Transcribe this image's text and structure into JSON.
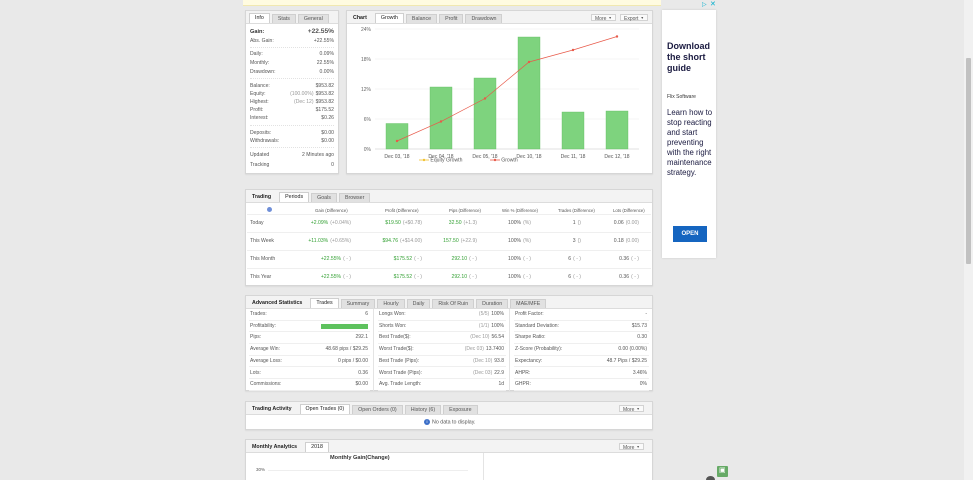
{
  "info": {
    "tabs": [
      "Info",
      "Stats",
      "General"
    ],
    "gain_label": "Gain:",
    "gain_value": "+22.55%",
    "abs_gain_label": "Abs. Gain:",
    "abs_gain_value": "+22.55%",
    "daily_label": "Daily:",
    "daily_value": "0.09%",
    "monthly_label": "Monthly:",
    "monthly_value": "22.55%",
    "drawdown_label": "Drawdown:",
    "drawdown_value": "0.00%",
    "balance_label": "Balance:",
    "balance_value": "$953.82",
    "equity_label": "Equity:",
    "equity_note": "(100.00%)",
    "equity_value": "$953.82",
    "highest_label": "Highest:",
    "highest_note": "(Dec 12)",
    "highest_value": "$953.82",
    "profit_label": "Profit:",
    "profit_value": "$175.52",
    "interest_label": "Interest:",
    "interest_value": "$0.26",
    "deposits_label": "Deposits:",
    "deposits_value": "$0.00",
    "withdrawals_label": "Withdrawals:",
    "withdrawals_value": "$0.00",
    "updated_label": "Updated",
    "updated_value": "2 Minutes ago",
    "tracking_label": "Tracking",
    "tracking_value": "0"
  },
  "chartpanel": {
    "tabs": [
      "Chart",
      "Growth",
      "Balance",
      "Profit",
      "Drawdown"
    ],
    "more": "More",
    "export": "Export",
    "legend_equity": "Equity Growth",
    "legend_growth": "Growth"
  },
  "chart_data": {
    "type": "bar",
    "categories": [
      "Dec 03, '18",
      "Dec 04, '18",
      "Dec 05, '18",
      "Dec 10, '18",
      "Dec 11, '18",
      "Dec 12, '18"
    ],
    "y_ticks": [
      "0%",
      "6%",
      "12%",
      "18%",
      "24%"
    ],
    "ylim": [
      0,
      24
    ],
    "series": [
      {
        "name": "Equity Growth",
        "type": "bar",
        "values": [
          5.1,
          12.4,
          14.2,
          22.4,
          7.4,
          7.6
        ]
      },
      {
        "name": "Growth",
        "type": "line",
        "values": [
          1.6,
          5.5,
          10.1,
          17.4,
          19.8,
          22.5
        ]
      }
    ],
    "colors": {
      "bar": "#7ed37e",
      "bar_stroke": "#63be63",
      "line": "#e85a4a",
      "legend_equity": "#f1c232"
    }
  },
  "trading": {
    "tabs": [
      "Trading",
      "Periods",
      "Goals",
      "Browser"
    ],
    "headers": [
      "Gain (Difference)",
      "Profit (Difference)",
      "Pips (Difference)",
      "Win % (Difference)",
      "Trades (Difference)",
      "Lots (Difference)"
    ],
    "rows": [
      {
        "label": "Today",
        "gain": "+2.09%",
        "gain_d": "(+0.04%)",
        "profit": "$19.50",
        "profit_d": "(+$0.78)",
        "pips": "32.50",
        "pips_d": "(+1.3)",
        "win": "100%",
        "win_d": "(%)",
        "trades": "1",
        "trades_d": "()",
        "lots": "0.06",
        "lots_d": "(0.00)"
      },
      {
        "label": "This Week",
        "gain": "+11.03%",
        "gain_d": "(+0.65%)",
        "profit": "$94.76",
        "profit_d": "(+$14.00)",
        "pips": "157.50",
        "pips_d": "(+22.9)",
        "win": "100%",
        "win_d": "(%)",
        "trades": "3",
        "trades_d": "()",
        "lots": "0.18",
        "lots_d": "(0.00)"
      },
      {
        "label": "This Month",
        "gain": "+22.55%",
        "gain_d": "( - )",
        "profit": "$175.52",
        "profit_d": "( - )",
        "pips": "292.10",
        "pips_d": "( - )",
        "win": "100%",
        "win_d": "( - )",
        "trades": "6",
        "trades_d": "( - )",
        "lots": "0.36",
        "lots_d": "( - )"
      },
      {
        "label": "This Year",
        "gain": "+22.55%",
        "gain_d": "( - )",
        "profit": "$175.52",
        "profit_d": "( - )",
        "pips": "292.10",
        "pips_d": "( - )",
        "win": "100%",
        "win_d": "( - )",
        "trades": "6",
        "trades_d": "( - )",
        "lots": "0.36",
        "lots_d": "( - )"
      }
    ]
  },
  "advanced": {
    "tabs": [
      "Advanced Statistics",
      "Trades",
      "Summary",
      "Hourly",
      "Daily",
      "Risk Of Ruin",
      "Duration",
      "MAE/MFE"
    ],
    "col1": [
      {
        "k": "Trades:",
        "v": "6"
      },
      {
        "k": "Profitability:",
        "v": ""
      },
      {
        "k": "Pips:",
        "v": "292.1"
      },
      {
        "k": "Average Win:",
        "v": "48.68 pips / $29.25"
      },
      {
        "k": "Average Loss:",
        "v": "0 pips / $0.00"
      },
      {
        "k": "Lots:",
        "v": "0.36"
      },
      {
        "k": "Commissions:",
        "v": "$0.00"
      }
    ],
    "col2": [
      {
        "k": "Longs Won:",
        "m": "(5/5)",
        "v": "100%"
      },
      {
        "k": "Shorts Won:",
        "m": "(1/1)",
        "v": "100%"
      },
      {
        "k": "Best Trade($):",
        "m": "(Dec 10)",
        "v": "56.54"
      },
      {
        "k": "Worst Trade($):",
        "m": "(Dec 03)",
        "v": "13.7400"
      },
      {
        "k": "Best Trade (Pips):",
        "m": "(Dec 10)",
        "v": "93.8"
      },
      {
        "k": "Worst Trade (Pips):",
        "m": "(Dec 03)",
        "v": "22.9"
      },
      {
        "k": "Avg. Trade Length:",
        "m": "",
        "v": "1d"
      }
    ],
    "col3": [
      {
        "k": "Profit Factor:",
        "v": "-"
      },
      {
        "k": "Standard Deviation:",
        "v": "$15.73"
      },
      {
        "k": "Sharpe Ratio:",
        "v": "0.30"
      },
      {
        "k": "Z-Score (Probability):",
        "v": "0.00 (0.00%)"
      },
      {
        "k": "Expectancy:",
        "v": "48.7 Pips / $29.25"
      },
      {
        "k": "AHPR:",
        "v": "3.46%"
      },
      {
        "k": "GHPR:",
        "v": "0%"
      }
    ]
  },
  "activity": {
    "tabs": [
      "Trading Activity",
      "Open Trades (0)",
      "Open Orders (0)",
      "History (6)",
      "Exposure"
    ],
    "more": "More",
    "empty": "No data to display."
  },
  "monthly": {
    "tabs": [
      "Monthly Analytics",
      "2018"
    ],
    "more": "More",
    "title": "Monthly Gain(Change)",
    "y_tick": "30%"
  },
  "ad": {
    "headline": "Download the short guide",
    "sponsor": "Flix Software",
    "body": "Learn how to stop reacting and start preventing with the right maintenance strategy.",
    "cta": "OPEN"
  }
}
